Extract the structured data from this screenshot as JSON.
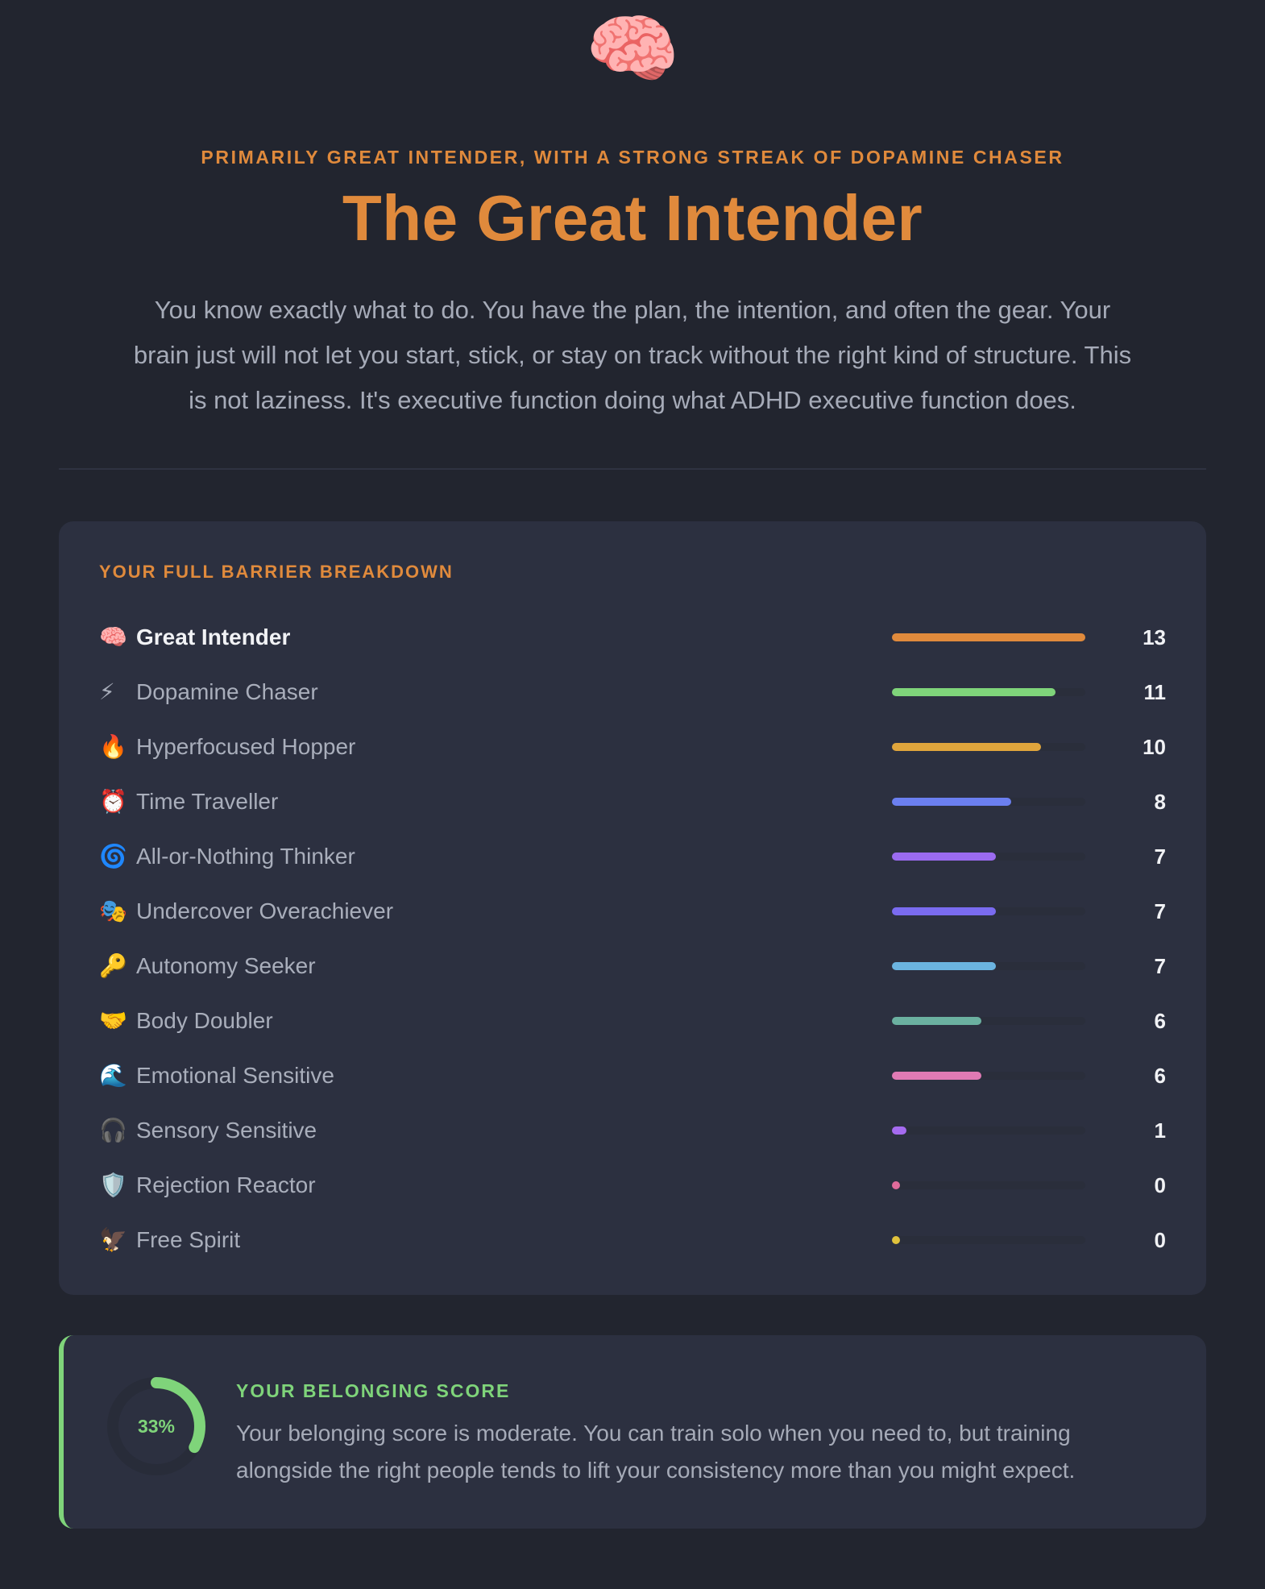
{
  "hero": {
    "emoji": "🧠",
    "eyebrow": "PRIMARILY GREAT INTENDER, WITH A STRONG STREAK OF DOPAMINE CHASER",
    "title": "The Great Intender",
    "description": "You know exactly what to do. You have the plan, the intention, and often the gear. Your brain just will not let you start, stick, or stay on track without the right kind of structure. This is not laziness. It's executive function doing what ADHD executive function does."
  },
  "breakdown": {
    "title": "YOUR FULL BARRIER BREAKDOWN",
    "max": 13,
    "items": [
      {
        "emoji": "🧠",
        "label": "Great Intender",
        "score": 13,
        "color": "#e08a3c"
      },
      {
        "emoji": "⚡",
        "label": "Dopamine Chaser",
        "score": 11,
        "color": "#7fd47a"
      },
      {
        "emoji": "🔥",
        "label": "Hyperfocused Hopper",
        "score": 10,
        "color": "#e0a53c"
      },
      {
        "emoji": "⏰",
        "label": "Time Traveller",
        "score": 8,
        "color": "#6b7ff0"
      },
      {
        "emoji": "🌀",
        "label": "All-or-Nothing Thinker",
        "score": 7,
        "color": "#9b6bf0"
      },
      {
        "emoji": "🎭",
        "label": "Undercover Overachiever",
        "score": 7,
        "color": "#7a6bf0"
      },
      {
        "emoji": "🔑",
        "label": "Autonomy Seeker",
        "score": 7,
        "color": "#6bb4e0"
      },
      {
        "emoji": "🤝",
        "label": "Body Doubler",
        "score": 6,
        "color": "#6bb0a0"
      },
      {
        "emoji": "🌊",
        "label": "Emotional Sensitive",
        "score": 6,
        "color": "#e07ab4"
      },
      {
        "emoji": "🎧",
        "label": "Sensory Sensitive",
        "score": 1,
        "color": "#a56bf0"
      },
      {
        "emoji": "🛡️",
        "label": "Rejection Reactor",
        "score": 0,
        "color": "#e06b9b"
      },
      {
        "emoji": "🦅",
        "label": "Free Spirit",
        "score": 0,
        "color": "#e0c23c"
      }
    ]
  },
  "belonging": {
    "percent_label": "33%",
    "percent": 33,
    "title": "YOUR BELONGING SCORE",
    "text": "Your belonging score is moderate. You can train solo when you need to, but training alongside the right people tends to lift your consistency more than you might expect.",
    "color": "#7fd47a"
  }
}
